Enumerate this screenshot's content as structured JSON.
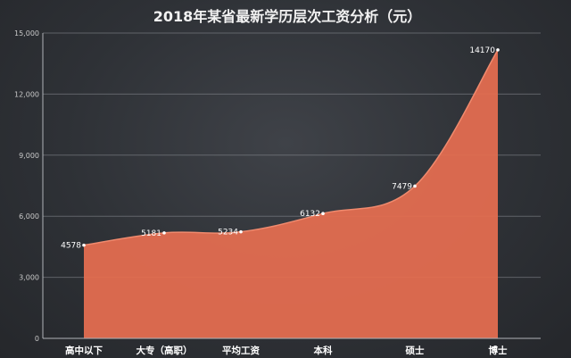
{
  "chart_data": {
    "type": "area",
    "title": "2018年某省最新学历层次工资分析（元）",
    "categories": [
      "高中以下",
      "大专（高职）",
      "平均工资",
      "本科",
      "硕士",
      "博士"
    ],
    "values": [
      4578,
      5181,
      5234,
      6132,
      7479,
      14170
    ],
    "data_labels": [
      "4578",
      "5181",
      "5234",
      "6132",
      "7479",
      "14170"
    ],
    "ylim": [
      0,
      15000
    ],
    "yticks": [
      0,
      3000,
      6000,
      9000,
      12000,
      15000
    ],
    "ytick_labels": [
      "0",
      "3,000",
      "6,000",
      "9,000",
      "12,000",
      "15,000"
    ],
    "grid": true,
    "legend": "none",
    "colors": {
      "fill": "#e36d50",
      "line": "#f08a6e",
      "background": "#2e3136"
    }
  }
}
